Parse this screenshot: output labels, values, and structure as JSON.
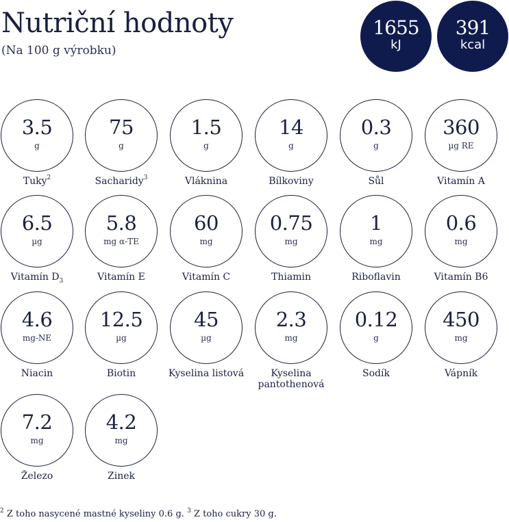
{
  "header": {
    "title": "Nutriční hodnoty",
    "subtitle": "(Na 100 g výrobku)"
  },
  "energy": [
    {
      "value": "1655",
      "unit": "kJ"
    },
    {
      "value": "391",
      "unit": "kcal"
    }
  ],
  "nutrients": [
    {
      "value": "3.5",
      "unit": "g",
      "label": "Tuky",
      "sup": "2"
    },
    {
      "value": "75",
      "unit": "g",
      "label": "Sacharidy",
      "sup": "3"
    },
    {
      "value": "1.5",
      "unit": "g",
      "label": "Vláknina"
    },
    {
      "value": "14",
      "unit": "g",
      "label": "Bílkoviny"
    },
    {
      "value": "0.3",
      "unit": "g",
      "label": "Sůl"
    },
    {
      "value": "360",
      "unit": "µg RE",
      "label": "Vitamín A"
    },
    {
      "value": "6.5",
      "unit": "µg",
      "label": "Vitamín D",
      "sub": "3"
    },
    {
      "value": "5.8",
      "unit": "mg α-TE",
      "label": "Vitamín E"
    },
    {
      "value": "60",
      "unit": "mg",
      "label": "Vitamín C"
    },
    {
      "value": "0.75",
      "unit": "mg",
      "label": "Thiamin"
    },
    {
      "value": "1",
      "unit": "mg",
      "label": "Riboflavin"
    },
    {
      "value": "0.6",
      "unit": "mg",
      "label": "Vitamín B6"
    },
    {
      "value": "4.6",
      "unit": "mg-NE",
      "label": "Niacin"
    },
    {
      "value": "12.5",
      "unit": "µg",
      "label": "Biotin"
    },
    {
      "value": "45",
      "unit": "µg",
      "label": "Kyselina listová"
    },
    {
      "value": "2.3",
      "unit": "mg",
      "label": "Kyselina pantothenová"
    },
    {
      "value": "0.12",
      "unit": "g",
      "label": "Sodík"
    },
    {
      "value": "450",
      "unit": "mg",
      "label": "Vápník"
    },
    {
      "value": "7.2",
      "unit": "mg",
      "label": "Železo"
    },
    {
      "value": "4.2",
      "unit": "mg",
      "label": "Zinek"
    }
  ],
  "footnotes": {
    "n2_mark": "2",
    "n2_text": "Z toho nasycené mastné kyseliny 0.6 g.",
    "n3_mark": "3",
    "n3_text": "Z toho cukry 30 g."
  }
}
